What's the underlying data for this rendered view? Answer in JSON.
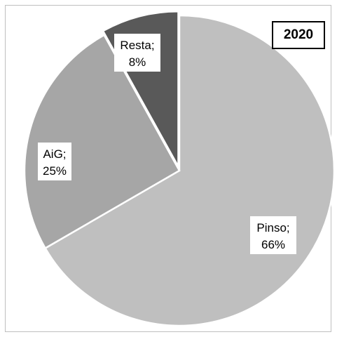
{
  "chart_data": {
    "type": "pie",
    "title": "2020",
    "slices": [
      {
        "label": "Pinso",
        "value": 66,
        "display": "66%",
        "color": "#bfbfbf"
      },
      {
        "label": "AiG",
        "value": 25,
        "display": "25%",
        "color": "#a6a6a6"
      },
      {
        "label": "Resta",
        "value": 8,
        "display": "8%",
        "color": "#595959"
      }
    ],
    "legend": "none",
    "label_format": "{label};\n{pct}"
  }
}
